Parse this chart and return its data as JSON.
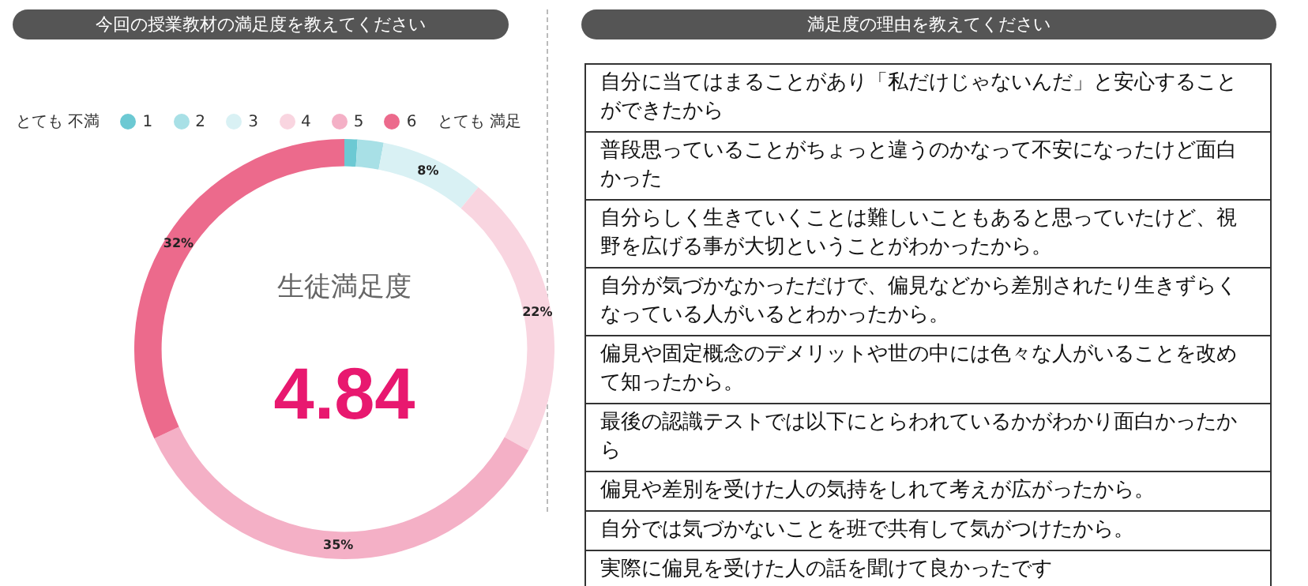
{
  "chart_data": [
    {
      "type": "donut",
      "title": "今回の授業教材の満足度を教えてください",
      "categories": [
        "1",
        "2",
        "3",
        "4",
        "5",
        "6"
      ],
      "values": [
        1,
        2,
        8,
        22,
        35,
        32
      ],
      "colors": [
        "#6cc9d3",
        "#a8e0e6",
        "#d9f1f4",
        "#f9d5e0",
        "#f4b0c6",
        "#ec6a8c"
      ],
      "value_labels": [
        null,
        null,
        "8%",
        "22%",
        "35%",
        "32%"
      ],
      "legend": "top",
      "annotations": [
        "とても 不満",
        "とても 満足",
        "生徒満足度",
        "4.84"
      ]
    },
    {
      "type": "other",
      "title": "満足度の理由を教えてください",
      "annotations": [
        "自分に当てはまることがあり「私だけじゃないんだ」と安心することができたから",
        "普段思っていることがちょっと違うのかなって不安になったけど面白かった",
        "自分らしく生きていくことは難しいこともあると思っていたけど、視野を広げる事が大切ということがわかったから。",
        "自分が気づかなかっただけで、偏見などから差別されたり生きずらくなっている人がいるとわかったから。",
        "偏見や固定概念のデメリットや世の中には色々な人がいることを改めて知ったから。",
        "最後の認識テストでは以下にとらわれているかがわかり面白かったから",
        "偏見や差別を受けた人の気持をしれて考えが広がったから。",
        "自分では気づかないことを班で共有して気がつけたから。",
        "実際に偏見を受けた人の話を聞けて良かったです"
      ]
    }
  ]
}
